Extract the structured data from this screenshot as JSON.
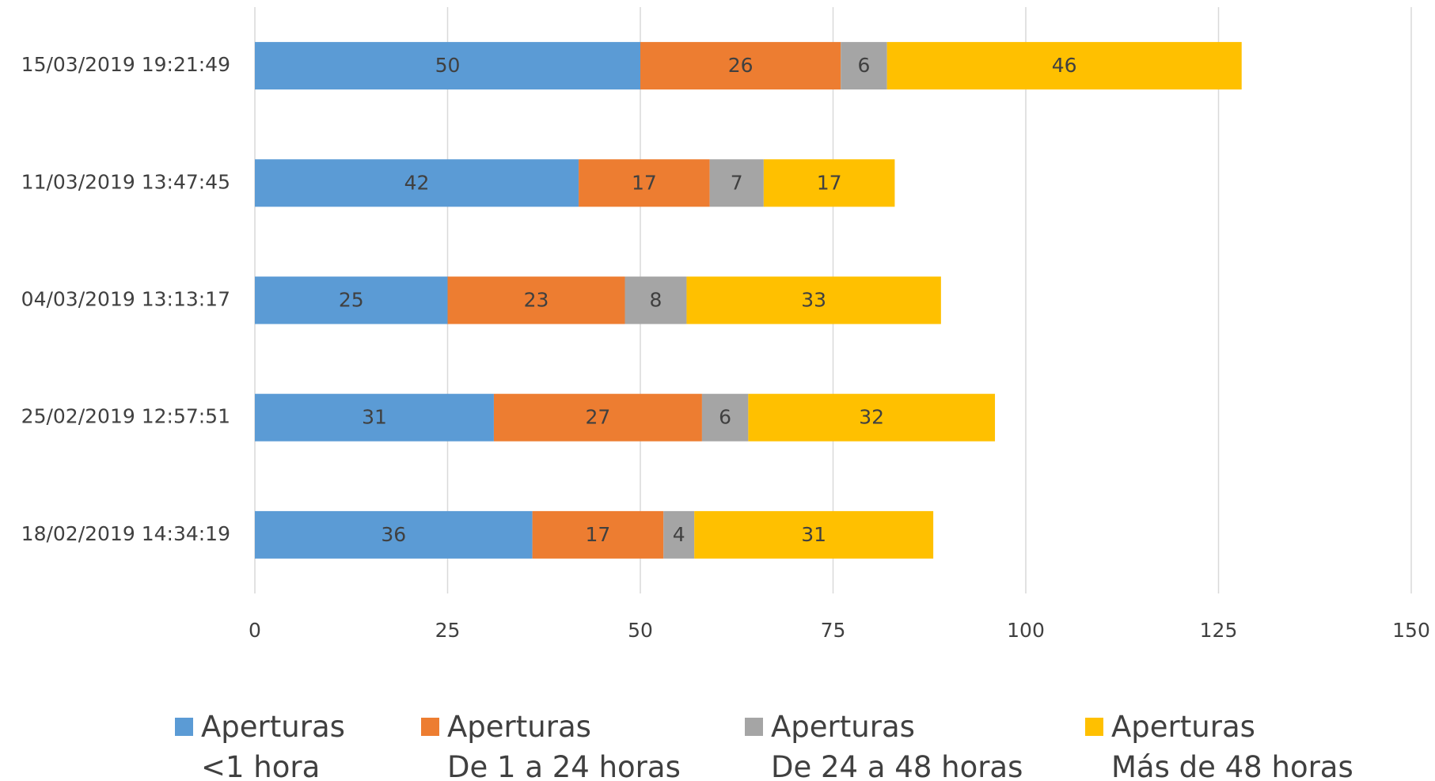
{
  "chart_data": {
    "type": "stacked_barh",
    "categories": [
      "15/03/2019 19:21:49",
      "11/03/2019 13:47:45",
      "04/03/2019 13:13:17",
      "25/02/2019 12:57:51",
      "18/02/2019 14:34:19"
    ],
    "series": [
      {
        "name": "Aperturas\n<1 hora",
        "color": "#5b9bd5",
        "values": [
          50,
          42,
          25,
          31,
          36
        ]
      },
      {
        "name": "Aperturas\nDe 1 a 24 horas",
        "color": "#ed7d31",
        "values": [
          26,
          17,
          23,
          27,
          17
        ]
      },
      {
        "name": "Aperturas\nDe 24 a 48 horas",
        "color": "#a5a5a5",
        "values": [
          6,
          7,
          8,
          6,
          4
        ]
      },
      {
        "name": "Aperturas\nMás de 48 horas",
        "color": "#ffc000",
        "values": [
          46,
          17,
          33,
          32,
          31
        ]
      }
    ],
    "xlim": [
      0,
      150
    ],
    "xticks": [
      0,
      25,
      50,
      75,
      100,
      125,
      150
    ],
    "grid": true,
    "legend": "bottom"
  }
}
